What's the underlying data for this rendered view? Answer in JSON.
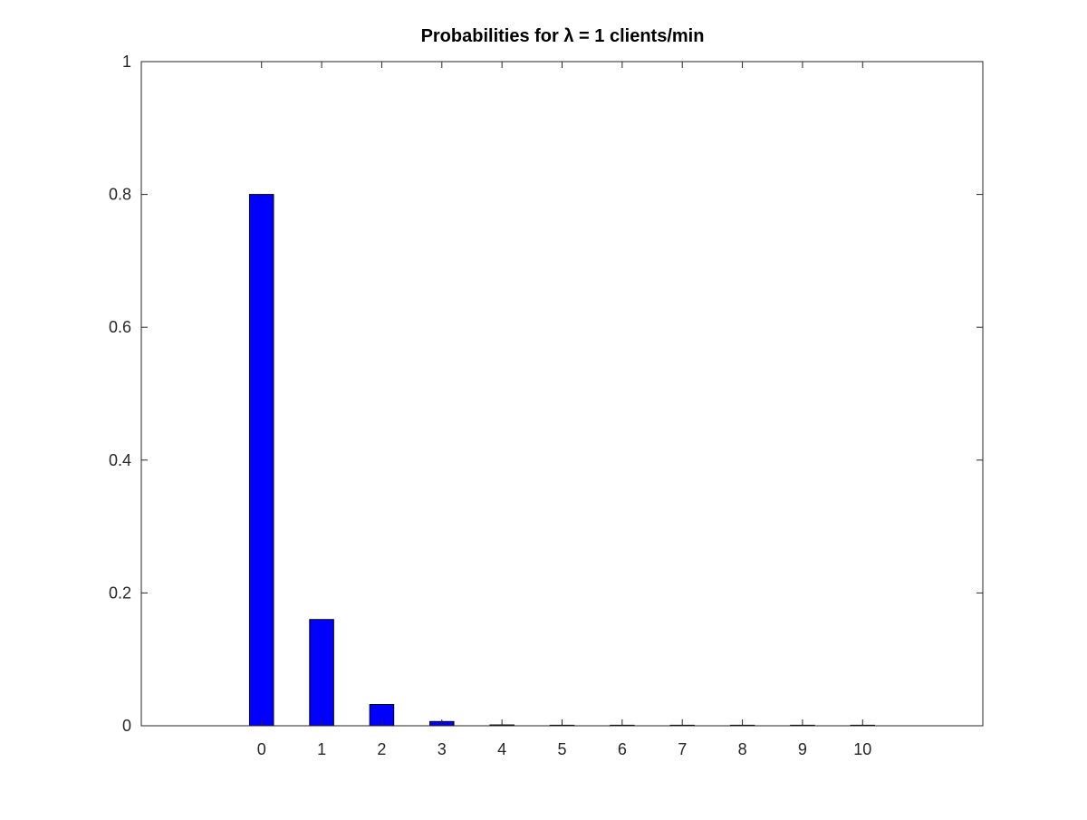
{
  "chart_data": {
    "type": "bar",
    "title": "Probabilities for λ = 1 clients/min",
    "xlabel": "",
    "ylabel": "",
    "categories": [
      "0",
      "1",
      "2",
      "3",
      "4",
      "5",
      "6",
      "7",
      "8",
      "9",
      "10"
    ],
    "x": [
      0,
      1,
      2,
      3,
      4,
      5,
      6,
      7,
      8,
      9,
      10
    ],
    "values": [
      0.8,
      0.16,
      0.032,
      0.0064,
      0.00128,
      0.000256,
      5.12e-05,
      1.024e-05,
      2.048e-06,
      4.096e-07,
      8.192e-08
    ],
    "xlim": [
      -2,
      12
    ],
    "ylim": [
      0,
      1
    ],
    "yticks": [
      0,
      0.2,
      0.4,
      0.6,
      0.8,
      1
    ],
    "ytick_labels": [
      "0",
      "0.2",
      "0.4",
      "0.6",
      "0.8",
      "1"
    ],
    "xticks": [
      0,
      1,
      2,
      3,
      4,
      5,
      6,
      7,
      8,
      9,
      10
    ],
    "xtick_labels": [
      "0",
      "1",
      "2",
      "3",
      "4",
      "5",
      "6",
      "7",
      "8",
      "9",
      "10"
    ],
    "bar_color": "#0000ff",
    "bar_edge_color": "#000000",
    "axis_color": "#262626",
    "grid": false,
    "legend": "none"
  }
}
